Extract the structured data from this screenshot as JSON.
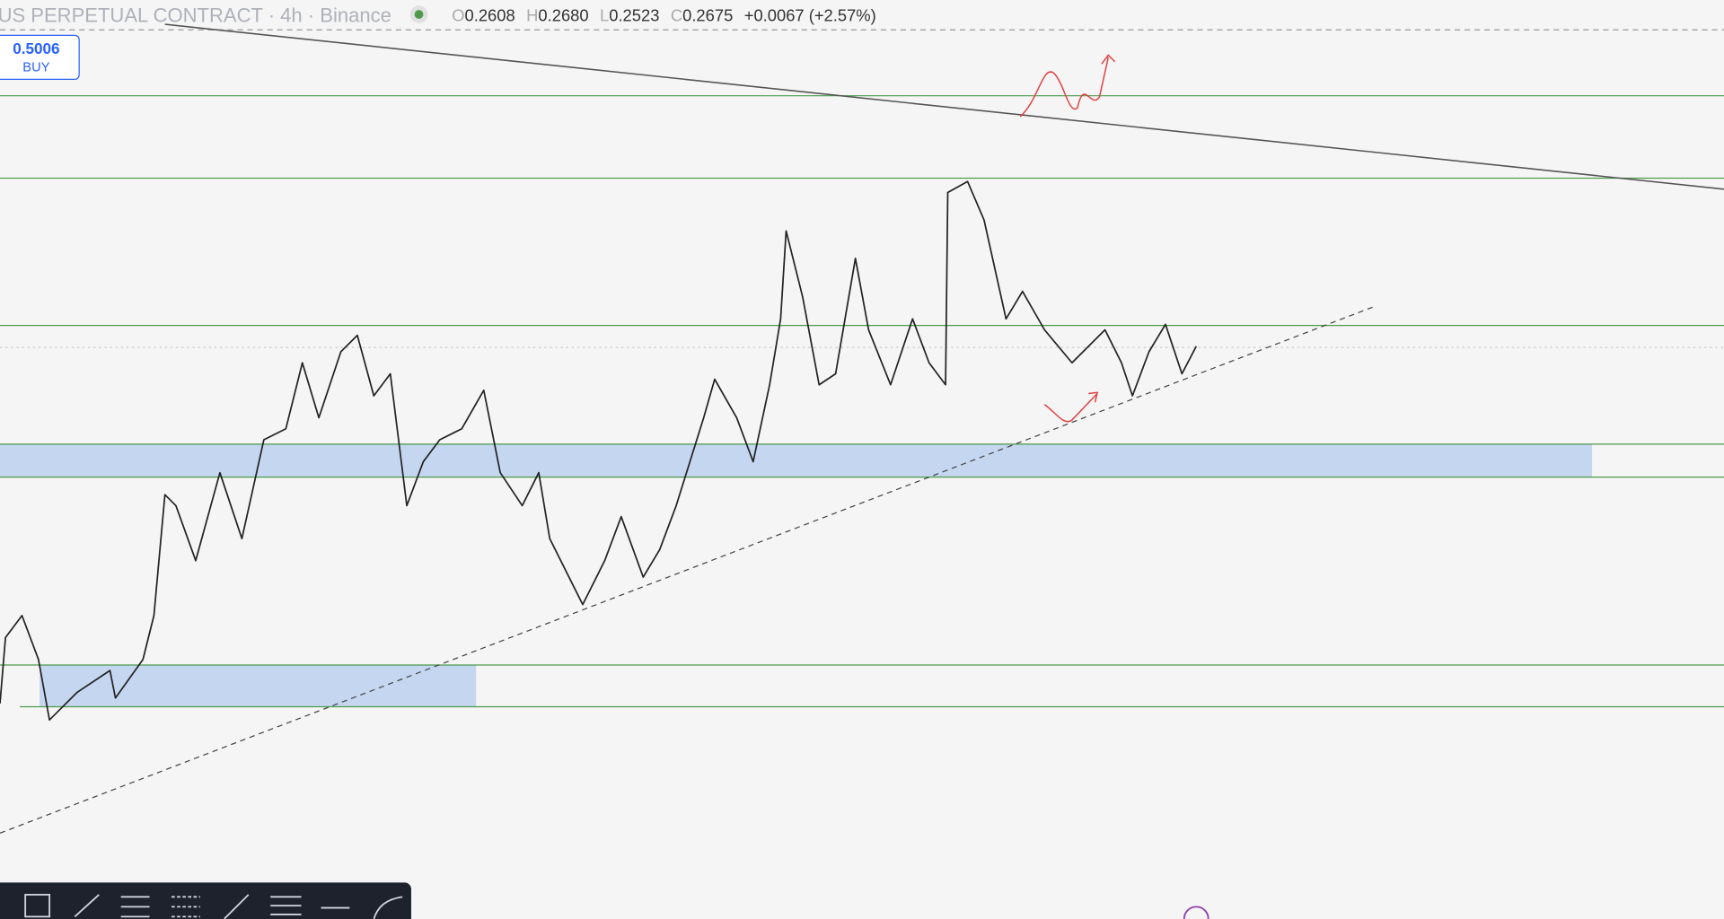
{
  "header": {
    "symbol": "US PERPETUAL CONTRACT · 4h · Binance",
    "ohlc": [
      {
        "label": "O",
        "value": "0.2608"
      },
      {
        "label": "H",
        "value": "0.2680"
      },
      {
        "label": "L",
        "value": "0.2523"
      },
      {
        "label": "C",
        "value": "0.2675"
      }
    ],
    "change": "+0.0067 (+2.57%)"
  },
  "order": {
    "price": "0.5006",
    "side": "BUY"
  }
}
